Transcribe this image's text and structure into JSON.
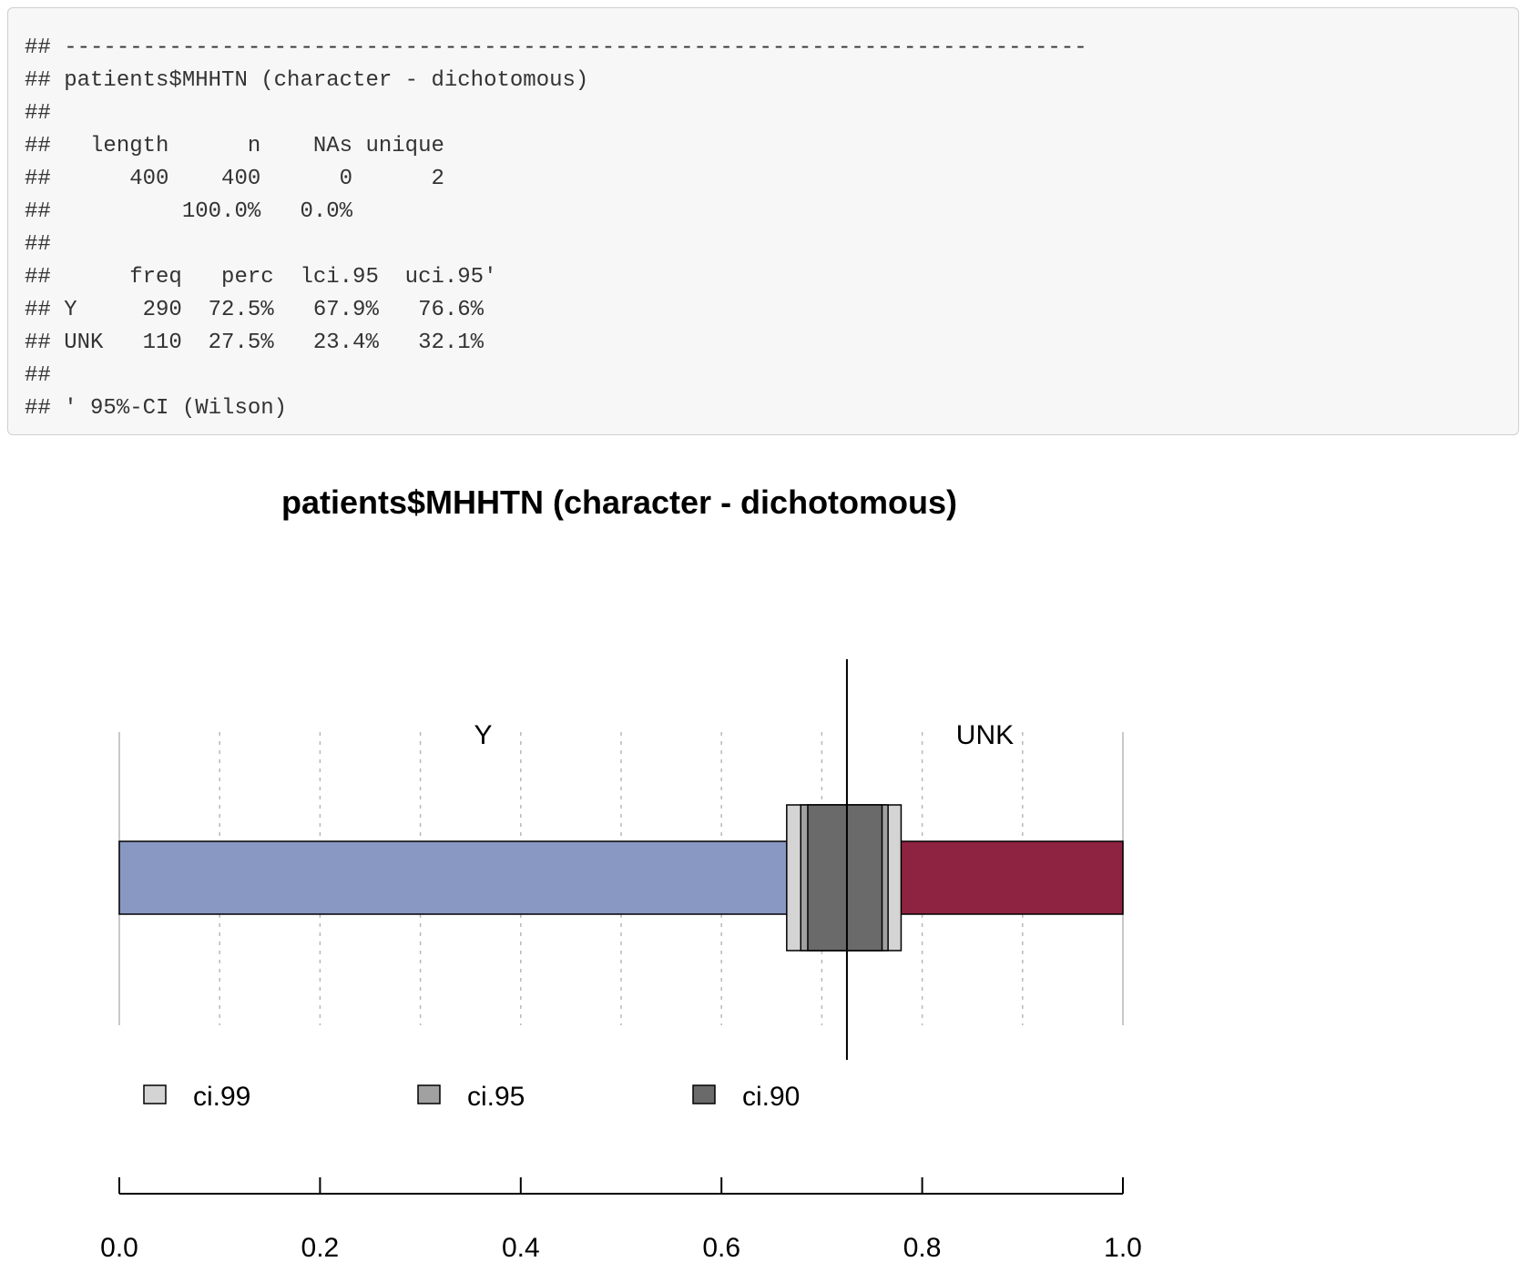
{
  "console": {
    "lines": [
      "## ------------------------------------------------------------------------------",
      "## patients$MHHTN (character - dichotomous)",
      "##",
      "##   length      n    NAs unique",
      "##      400    400      0      2",
      "##          100.0%   0.0%",
      "##",
      "##      freq   perc  lci.95  uci.95'",
      "## Y     290  72.5%   67.9%   76.6%",
      "## UNK   110  27.5%   23.4%   32.1%",
      "##",
      "## ' 95%-CI (Wilson)"
    ]
  },
  "chart_data": {
    "type": "bar",
    "orientation": "horizontal",
    "stacked": true,
    "title": "patients$MHHTN (character - dichotomous)",
    "categories": [
      "Y",
      "UNK"
    ],
    "values": [
      0.725,
      0.275
    ],
    "colors": [
      "#8898c2",
      "#8e2341"
    ],
    "estimate": 0.725,
    "confidence_intervals": [
      {
        "name": "ci.99",
        "lower": 0.665,
        "upper": 0.779,
        "color": "#d4d4d4"
      },
      {
        "name": "ci.95",
        "lower": 0.679,
        "upper": 0.766,
        "color": "#a1a1a1"
      },
      {
        "name": "ci.90",
        "lower": 0.686,
        "upper": 0.76,
        "color": "#6a6a6a"
      }
    ],
    "xlim": [
      0,
      1
    ],
    "x_ticks": [
      0,
      0.2,
      0.4,
      0.6,
      0.8,
      1
    ],
    "x_tick_labels": [
      "0.0",
      "0.2",
      "0.4",
      "0.6",
      "0.8",
      "1.0"
    ],
    "grid_minor": [
      0.1,
      0.2,
      0.3,
      0.4,
      0.5,
      0.6,
      0.7,
      0.8,
      0.9
    ],
    "grid": true,
    "legend_position": "bottom"
  }
}
